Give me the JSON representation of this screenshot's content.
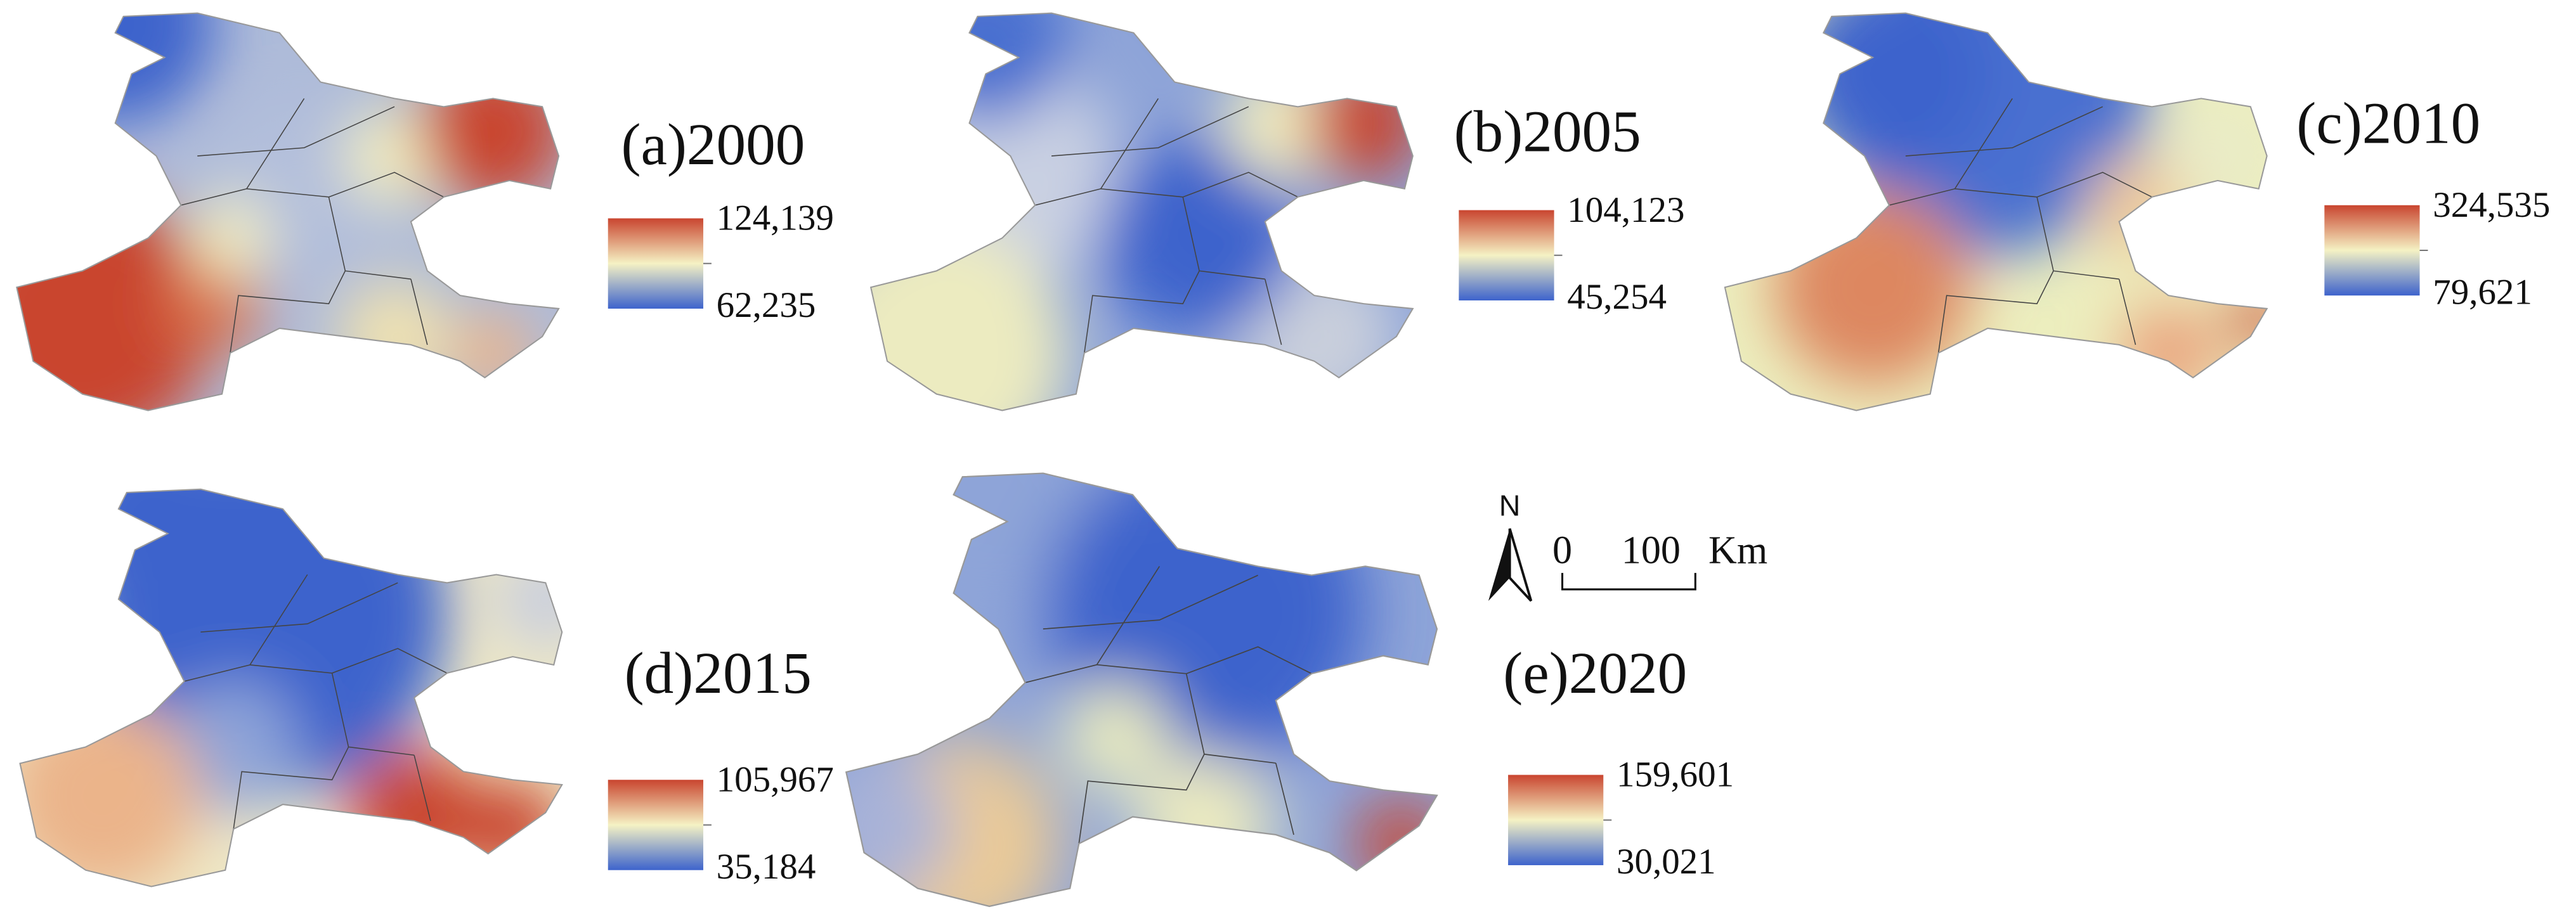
{
  "panels": [
    {
      "label": "(a)2000",
      "max": "124,139",
      "min": "62,235"
    },
    {
      "label": "(b)2005",
      "max": "104,123",
      "min": "45,254"
    },
    {
      "label": "(c)2010",
      "max": "324,535",
      "min": "79,621"
    },
    {
      "label": "(d)2015",
      "max": "105,967",
      "min": "35,184"
    },
    {
      "label": "(e)2020",
      "max": "159,601",
      "min": "30,021"
    }
  ],
  "north": "N",
  "scale": {
    "start": "0",
    "end": "100",
    "unit": "Km"
  }
}
